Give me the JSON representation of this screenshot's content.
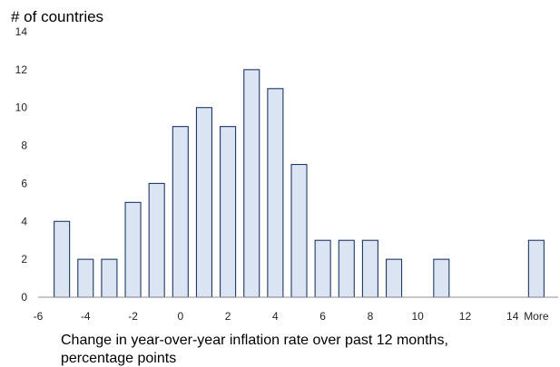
{
  "chart_data": {
    "type": "bar",
    "ylabel": "# of countries",
    "xlabel_lines": [
      "Change in year-over-year inflation rate over past 12 months,",
      "percentage points"
    ],
    "ylim": [
      0,
      14
    ],
    "yticks": [
      0,
      2,
      4,
      6,
      8,
      10,
      12,
      14
    ],
    "xtick_labels": [
      "-6",
      "-4",
      "-2",
      "0",
      "2",
      "4",
      "6",
      "8",
      "10",
      "12",
      "14",
      "More"
    ],
    "bin_upper_edges": [
      -5,
      -4,
      -3,
      -2,
      -1,
      0,
      1,
      2,
      3,
      4,
      5,
      6,
      7,
      8,
      9,
      10,
      11,
      12,
      13,
      14,
      "More"
    ],
    "values": [
      4,
      2,
      2,
      5,
      6,
      9,
      10,
      9,
      12,
      11,
      7,
      3,
      3,
      3,
      2,
      0,
      2,
      0,
      0,
      0,
      3
    ],
    "grid": false,
    "legend": "none",
    "colors": {
      "bar_fill": "#dbe4f2",
      "bar_stroke": "#1f3864",
      "axis": "#8c8c8c"
    }
  }
}
